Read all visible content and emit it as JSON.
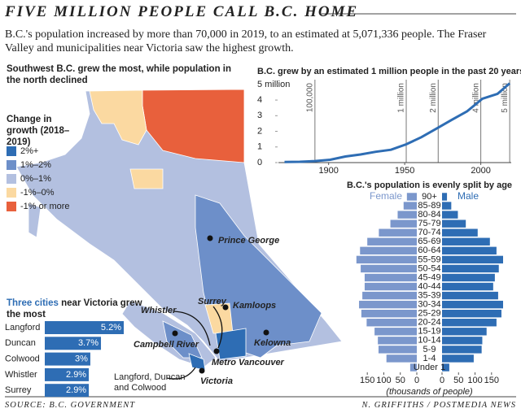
{
  "header": {
    "title": "FIVE MILLION PEOPLE CALL B.C. HOME",
    "subtitle": "B.C.'s population increased by more than 70,000 in 2019, to an estimated at 5,071,336 people. The Fraser Valley and municipalities near Victoria saw the highest growth."
  },
  "map": {
    "title": "Southwest B.C. grew the most, while population in the north declined",
    "legend_title": "Change in growth (2018–2019)",
    "legend": [
      {
        "label": "2%+",
        "color": "#2e6db4"
      },
      {
        "label": "1%–2%",
        "color": "#6d8fc9"
      },
      {
        "label": "0%–1%",
        "color": "#b3c0e0"
      },
      {
        "label": "-1%–0%",
        "color": "#fbd9a1"
      },
      {
        "label": "-1% or more",
        "color": "#e8603c"
      }
    ],
    "cities": [
      "Prince George",
      "Kamloops",
      "Kelowna",
      "Surrey",
      "Whistler",
      "Campbell River",
      "Metro Vancouver",
      "Victoria"
    ],
    "note": [
      "Langford, Duncan",
      "and Colwood"
    ]
  },
  "chart_data": [
    {
      "type": "bar",
      "title_lead": "Three cities",
      "title": "near Victoria grew the most",
      "categories": [
        "Langford",
        "Duncan",
        "Colwood",
        "Whistler",
        "Surrey"
      ],
      "values": [
        5.2,
        3.7,
        3,
        2.9,
        2.9
      ],
      "value_labels": [
        "5.2%",
        "3.7%",
        "3%",
        "2.9%",
        "2.9%"
      ],
      "color": "#2e6db4",
      "xlim": [
        0,
        5.2
      ]
    },
    {
      "type": "line",
      "title": "B.C. grew by an estimated 1 million people in the past 20 years",
      "x": [
        1871,
        1881,
        1891,
        1901,
        1911,
        1921,
        1931,
        1941,
        1951,
        1961,
        1971,
        1981,
        1991,
        2001,
        2011,
        2019
      ],
      "values": [
        0.04,
        0.05,
        0.1,
        0.18,
        0.39,
        0.52,
        0.69,
        0.82,
        1.17,
        1.63,
        2.18,
        2.74,
        3.28,
        4.08,
        4.4,
        5.07
      ],
      "color": "#2e6db4",
      "xlim": [
        1867,
        2020
      ],
      "xticks": [
        1900,
        1950,
        2000
      ],
      "ylim": [
        0,
        5.2
      ],
      "yticks": [
        0,
        1,
        2,
        3,
        4,
        {
          "value": 5,
          "label": "5 million"
        }
      ],
      "annotations": [
        {
          "x": 1891,
          "label": "100,000"
        },
        {
          "x": 1951,
          "label": "1 million"
        },
        {
          "x": 1972,
          "label": "2 million"
        },
        {
          "x": 2000,
          "label": "4 million"
        },
        {
          "x": 2019,
          "label": "5 million"
        }
      ]
    },
    {
      "type": "pyramid",
      "title": "B.C.'s population is evenly split by age",
      "categories": [
        "90+",
        "85-89",
        "80-84",
        "75-79",
        "70-74",
        "65-69",
        "60-64",
        "55-59",
        "50-54",
        "45-49",
        "40-44",
        "35-39",
        "30-34",
        "25-29",
        "20-24",
        "15-19",
        "10-14",
        "5-9",
        "1-4",
        "Under 1"
      ],
      "series": [
        {
          "name": "Female",
          "color": "#7b97cc",
          "values": [
            30,
            40,
            58,
            80,
            115,
            150,
            172,
            183,
            170,
            158,
            158,
            165,
            175,
            168,
            152,
            128,
            118,
            116,
            92,
            20
          ]
        },
        {
          "name": "Male",
          "color": "#2e6db4",
          "values": [
            15,
            28,
            48,
            72,
            108,
            145,
            165,
            185,
            172,
            160,
            155,
            170,
            185,
            180,
            165,
            135,
            122,
            120,
            96,
            22
          ]
        }
      ],
      "xlim": [
        0,
        185
      ],
      "xticks": [
        0,
        50,
        100,
        150
      ],
      "xlabel": "(thousands of people)"
    }
  ],
  "footer": {
    "source": "SOURCE: B.C. GOVERNMENT",
    "credit": "N. GRIFFITHS / POSTMEDIA NEWS"
  }
}
